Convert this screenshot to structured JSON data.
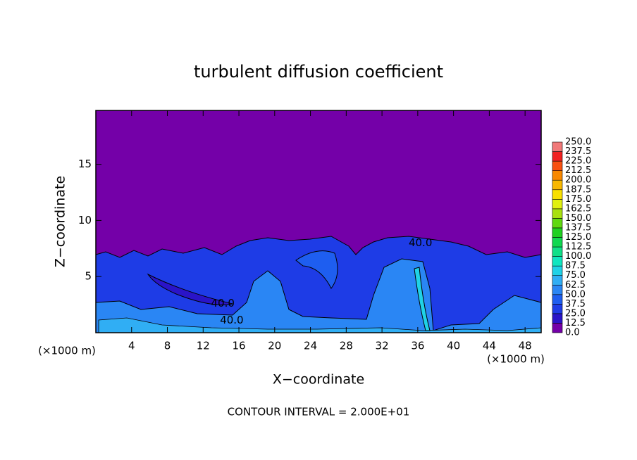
{
  "chart_data": {
    "type": "contour",
    "title": "turbulent diffusion coefficient",
    "x_label": "X−coordinate",
    "y_label": "Z−coordinate",
    "x_unit": "(×1000 m)",
    "y_unit": "(×1000 m)",
    "footer": "CONTOUR INTERVAL = 2.000E+01",
    "xlim": [
      0,
      49.8
    ],
    "ylim": [
      0,
      19.8
    ],
    "xticks": [
      4,
      8,
      12,
      16,
      20,
      24,
      28,
      32,
      36,
      40,
      44,
      48
    ],
    "yticks": [
      5,
      10,
      15
    ],
    "annotations": [
      {
        "text": "40.0",
        "x": 14.2,
        "y": 2.6
      },
      {
        "text": "40.0",
        "x": 15.2,
        "y": 1.1
      },
      {
        "text": "40.0",
        "x": 36.3,
        "y": 8.0
      }
    ],
    "colorbar": {
      "ticks": [
        {
          "value": 0,
          "label": "0.0"
        },
        {
          "value": 12.5,
          "label": "12.5"
        },
        {
          "value": 25,
          "label": "25.0"
        },
        {
          "value": 37.5,
          "label": "37.5"
        },
        {
          "value": 50,
          "label": "50.0"
        },
        {
          "value": 62.5,
          "label": "62.5"
        },
        {
          "value": 75,
          "label": "75.0"
        },
        {
          "value": 87.5,
          "label": "87.5"
        },
        {
          "value": 100,
          "label": "100.0"
        },
        {
          "value": 112.5,
          "label": "112.5"
        },
        {
          "value": 125,
          "label": "125.0"
        },
        {
          "value": 137.5,
          "label": "137.5"
        },
        {
          "value": 150,
          "label": "150.0"
        },
        {
          "value": 162.5,
          "label": "162.5"
        },
        {
          "value": 175,
          "label": "175.0"
        },
        {
          "value": 187.5,
          "label": "187.5"
        },
        {
          "value": 200,
          "label": "200.0"
        },
        {
          "value": 212.5,
          "label": "212.5"
        },
        {
          "value": 225,
          "label": "225.0"
        },
        {
          "value": 237.5,
          "label": "237.5"
        },
        {
          "value": 250,
          "label": "250.0"
        }
      ],
      "colors": [
        "#7400a8",
        "#2a14c8",
        "#1e3ce6",
        "#1e5ef0",
        "#2a86f4",
        "#30aef4",
        "#20d2e6",
        "#10e6c0",
        "#10e088",
        "#10d850",
        "#20d020",
        "#60d810",
        "#a8e010",
        "#e0f010",
        "#f8e000",
        "#f8b800",
        "#f88800",
        "#f85010",
        "#f02020",
        "#f07878"
      ]
    }
  }
}
